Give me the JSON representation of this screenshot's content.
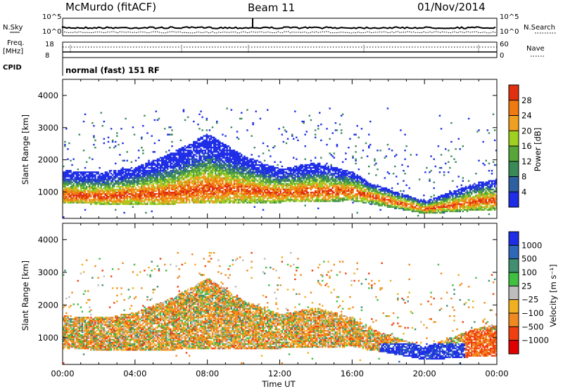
{
  "header": {
    "station": "McMurdo (fitACF)",
    "beam": "Beam 11",
    "date": "01/Nov/2014"
  },
  "status_panel": {
    "left_labels": [
      "N.Sky",
      "Freq.",
      "[MHz]",
      "CPID"
    ],
    "left_ticks_top": [
      "10^5",
      "10^0"
    ],
    "left_ticks_freq": [
      "18",
      "8"
    ],
    "right_ticks_top": [
      "10^5",
      "10^0"
    ],
    "right_ticks_nave": [
      "60",
      "0"
    ],
    "right_labels": [
      "N.Search",
      "Nave"
    ],
    "cpid_text": "normal (fast) 151 RF"
  },
  "colors": {
    "power": [
      "#1f2ee6",
      "#2e5fa0",
      "#3a8a58",
      "#56a63a",
      "#9fcf1f",
      "#f0a020",
      "#f07a10",
      "#e03010"
    ],
    "velocity": [
      "#1f2ee6",
      "#2f68b8",
      "#3f8f70",
      "#40c040",
      "#bdbdbd",
      "#f0b020",
      "#f08a20",
      "#f04010",
      "#e00000"
    ]
  },
  "chart_data": [
    {
      "type": "heatmap",
      "title": "Power",
      "xlabel": "",
      "ylabel": "Slant Range [km]",
      "xlim_hours": [
        0,
        24
      ],
      "ylim_km": [
        180,
        4500
      ],
      "y_ticks": [
        "4000",
        "3000",
        "2000",
        "1000"
      ],
      "colorbar": {
        "label": "Power [dB]",
        "ticks": [
          "28",
          "24",
          "20",
          "16",
          "12",
          "8",
          "4"
        ],
        "range": [
          0,
          30
        ]
      },
      "bands": [
        {
          "t": 0.0,
          "lo": 620,
          "hi": 1650,
          "core": 880
        },
        {
          "t": 2.0,
          "lo": 600,
          "hi": 1600,
          "core": 850
        },
        {
          "t": 4.0,
          "lo": 600,
          "hi": 1750,
          "core": 900
        },
        {
          "t": 6.0,
          "lo": 600,
          "hi": 2200,
          "core": 950
        },
        {
          "t": 8.0,
          "lo": 650,
          "hi": 2800,
          "core": 1100
        },
        {
          "t": 10.0,
          "lo": 650,
          "hi": 2100,
          "core": 1050
        },
        {
          "t": 12.0,
          "lo": 650,
          "hi": 1700,
          "core": 950
        },
        {
          "t": 14.0,
          "lo": 680,
          "hi": 1900,
          "core": 1000
        },
        {
          "t": 16.0,
          "lo": 700,
          "hi": 1600,
          "core": 1000
        },
        {
          "t": 17.0,
          "lo": 600,
          "hi": 1250,
          "core": 850
        },
        {
          "t": 20.0,
          "lo": 300,
          "hi": 700,
          "core": 450
        },
        {
          "t": 23.0,
          "lo": 400,
          "hi": 1300,
          "core": 700
        },
        {
          "t": 24.0,
          "lo": 400,
          "hi": 1350,
          "core": 720
        }
      ]
    },
    {
      "type": "heatmap",
      "title": "Velocity",
      "xlabel": "Time UT",
      "ylabel": "Slant Range [km]",
      "xlim_hours": [
        0,
        24
      ],
      "ylim_km": [
        180,
        4500
      ],
      "x_ticks": [
        "00:00",
        "04:00",
        "08:00",
        "12:00",
        "16:00",
        "20:00",
        "00:00"
      ],
      "y_ticks": [
        "4000",
        "3000",
        "2000",
        "1000"
      ],
      "colorbar": {
        "label": "Velocity [m s⁻¹]",
        "ticks": [
          "1000",
          "500",
          "100",
          "25",
          "−25",
          "−100",
          "−500",
          "−1000"
        ],
        "range": [
          -1200,
          1200
        ]
      }
    }
  ]
}
